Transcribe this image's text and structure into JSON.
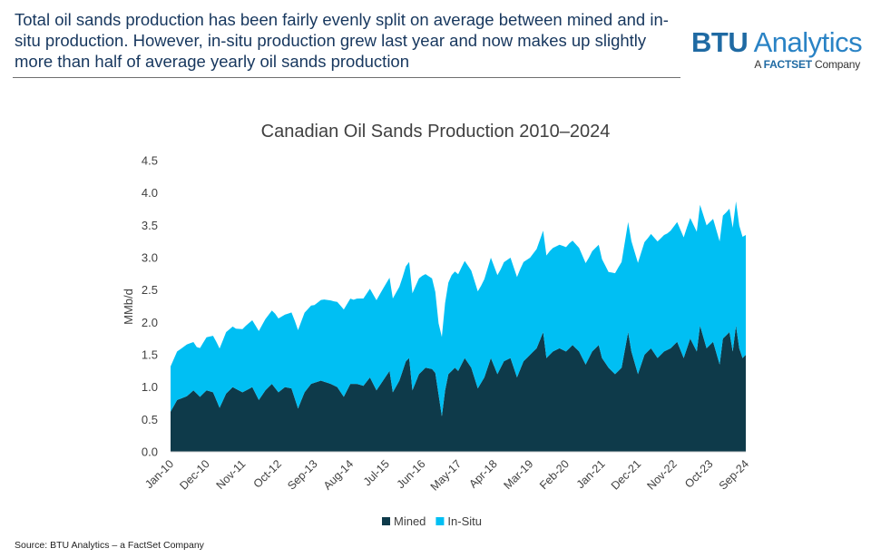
{
  "header": {
    "headline": "Total oil sands production has been fairly evenly split on average between mined and in-situ production. However, in-situ production grew last year and now makes up slightly more than half of average yearly oil sands production",
    "logo_btu": "BTU",
    "logo_analytics": " Analytics",
    "logo_sub_prefix": "A ",
    "logo_sub_brand": "FACTSET",
    "logo_sub_suffix": " Company"
  },
  "footer": {
    "source": "Source: BTU Analytics – a FactSet Company"
  },
  "colors": {
    "mined": "#0e3a4a",
    "insitu": "#00bff3",
    "headline": "#17375e",
    "logo": "#1f6aa3"
  },
  "chart_data": {
    "type": "area",
    "stacked": true,
    "title": "Canadian Oil Sands Production 2010–2024",
    "xlabel": "",
    "ylabel": "MMb/d",
    "ylim": [
      0,
      4.5
    ],
    "yticks": [
      "0.0",
      "0.5",
      "1.0",
      "1.5",
      "2.0",
      "2.5",
      "3.0",
      "3.5",
      "4.0",
      "4.5"
    ],
    "x_tick_labels": [
      "Jan-10",
      "Dec-10",
      "Nov-11",
      "Oct-12",
      "Sep-13",
      "Aug-14",
      "Jul-15",
      "Jun-16",
      "May-17",
      "Apr-18",
      "Mar-19",
      "Feb-20",
      "Jan-21",
      "Dec-21",
      "Nov-22",
      "Oct-23",
      "Sep-24"
    ],
    "x_tick_step_months": 11,
    "start_month": "Jan-10",
    "months": 177,
    "legend_position": "bottom",
    "series": [
      {
        "name": "Mined",
        "key": "mined",
        "anchors": [
          [
            0,
            0.62
          ],
          [
            2,
            0.8
          ],
          [
            5,
            0.86
          ],
          [
            7,
            0.95
          ],
          [
            9,
            0.85
          ],
          [
            11,
            0.95
          ],
          [
            13,
            0.92
          ],
          [
            15,
            0.68
          ],
          [
            17,
            0.9
          ],
          [
            19,
            1.0
          ],
          [
            22,
            0.92
          ],
          [
            25,
            1.0
          ],
          [
            27,
            0.8
          ],
          [
            29,
            0.95
          ],
          [
            31,
            1.05
          ],
          [
            33,
            0.92
          ],
          [
            35,
            1.0
          ],
          [
            37,
            0.98
          ],
          [
            39,
            0.67
          ],
          [
            41,
            0.92
          ],
          [
            43,
            1.05
          ],
          [
            46,
            1.1
          ],
          [
            49,
            1.05
          ],
          [
            51,
            1.0
          ],
          [
            53,
            0.85
          ],
          [
            55,
            1.05
          ],
          [
            57,
            1.05
          ],
          [
            59,
            1.02
          ],
          [
            61,
            1.15
          ],
          [
            63,
            0.95
          ],
          [
            65,
            1.1
          ],
          [
            67,
            1.25
          ],
          [
            68,
            0.92
          ],
          [
            70,
            1.1
          ],
          [
            72,
            1.4
          ],
          [
            73,
            1.45
          ],
          [
            74,
            0.95
          ],
          [
            76,
            1.2
          ],
          [
            78,
            1.3
          ],
          [
            80,
            1.28
          ],
          [
            81,
            1.22
          ],
          [
            83,
            0.55
          ],
          [
            84,
            0.95
          ],
          [
            85,
            1.2
          ],
          [
            87,
            1.3
          ],
          [
            88,
            1.25
          ],
          [
            90,
            1.45
          ],
          [
            92,
            1.3
          ],
          [
            94,
            0.98
          ],
          [
            96,
            1.15
          ],
          [
            98,
            1.45
          ],
          [
            100,
            1.2
          ],
          [
            102,
            1.4
          ],
          [
            104,
            1.45
          ],
          [
            106,
            1.15
          ],
          [
            108,
            1.4
          ],
          [
            110,
            1.5
          ],
          [
            112,
            1.6
          ],
          [
            114,
            1.85
          ],
          [
            115,
            1.45
          ],
          [
            117,
            1.55
          ],
          [
            119,
            1.6
          ],
          [
            121,
            1.55
          ],
          [
            123,
            1.65
          ],
          [
            125,
            1.55
          ],
          [
            127,
            1.35
          ],
          [
            129,
            1.55
          ],
          [
            131,
            1.65
          ],
          [
            132,
            1.45
          ],
          [
            134,
            1.3
          ],
          [
            136,
            1.2
          ],
          [
            138,
            1.3
          ],
          [
            140,
            1.85
          ],
          [
            141,
            1.55
          ],
          [
            143,
            1.2
          ],
          [
            145,
            1.5
          ],
          [
            147,
            1.6
          ],
          [
            149,
            1.45
          ],
          [
            151,
            1.55
          ],
          [
            153,
            1.6
          ],
          [
            155,
            1.7
          ],
          [
            157,
            1.45
          ],
          [
            159,
            1.75
          ],
          [
            161,
            1.55
          ],
          [
            162,
            1.95
          ],
          [
            164,
            1.6
          ],
          [
            166,
            1.7
          ],
          [
            168,
            1.35
          ],
          [
            169,
            1.75
          ],
          [
            171,
            1.85
          ],
          [
            172,
            1.55
          ],
          [
            173,
            1.95
          ],
          [
            174,
            1.6
          ],
          [
            175,
            1.45
          ],
          [
            176,
            1.5
          ]
        ]
      },
      {
        "name": "In-Situ",
        "key": "insitu",
        "anchors": [
          [
            0,
            0.7
          ],
          [
            2,
            0.75
          ],
          [
            5,
            0.8
          ],
          [
            8,
            0.72
          ],
          [
            11,
            0.82
          ],
          [
            14,
            0.9
          ],
          [
            17,
            0.95
          ],
          [
            20,
            0.93
          ],
          [
            23,
            1.0
          ],
          [
            26,
            1.05
          ],
          [
            29,
            1.1
          ],
          [
            32,
            1.15
          ],
          [
            35,
            1.12
          ],
          [
            38,
            1.2
          ],
          [
            41,
            1.23
          ],
          [
            44,
            1.2
          ],
          [
            47,
            1.27
          ],
          [
            50,
            1.3
          ],
          [
            53,
            1.35
          ],
          [
            56,
            1.3
          ],
          [
            59,
            1.35
          ],
          [
            62,
            1.38
          ],
          [
            65,
            1.42
          ],
          [
            68,
            1.45
          ],
          [
            71,
            1.45
          ],
          [
            74,
            1.5
          ],
          [
            77,
            1.47
          ],
          [
            80,
            1.4
          ],
          [
            82,
            1.1
          ],
          [
            84,
            1.35
          ],
          [
            86,
            1.48
          ],
          [
            89,
            1.5
          ],
          [
            92,
            1.5
          ],
          [
            95,
            1.5
          ],
          [
            98,
            1.55
          ],
          [
            101,
            1.52
          ],
          [
            104,
            1.55
          ],
          [
            107,
            1.55
          ],
          [
            110,
            1.5
          ],
          [
            113,
            1.55
          ],
          [
            116,
            1.6
          ],
          [
            119,
            1.6
          ],
          [
            122,
            1.62
          ],
          [
            125,
            1.6
          ],
          [
            128,
            1.55
          ],
          [
            131,
            1.55
          ],
          [
            134,
            1.48
          ],
          [
            137,
            1.6
          ],
          [
            140,
            1.7
          ],
          [
            143,
            1.72
          ],
          [
            146,
            1.75
          ],
          [
            149,
            1.8
          ],
          [
            152,
            1.8
          ],
          [
            155,
            1.85
          ],
          [
            158,
            1.87
          ],
          [
            161,
            1.85
          ],
          [
            164,
            1.9
          ],
          [
            167,
            1.9
          ],
          [
            170,
            1.9
          ],
          [
            173,
            1.92
          ],
          [
            176,
            1.85
          ]
        ]
      }
    ]
  }
}
